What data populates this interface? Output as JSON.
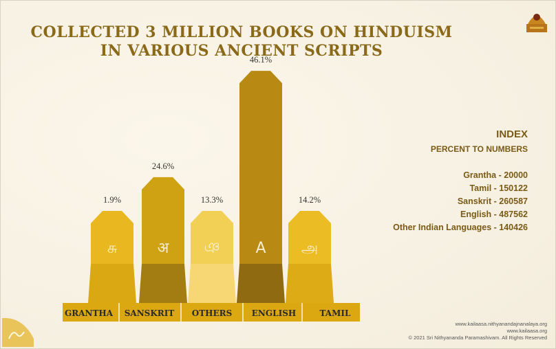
{
  "title_line1": "COLLECTED 3 MILLION BOOKS ON HINDUISM",
  "title_line2": "IN VARIOUS ANCIENT SCRIPTS",
  "index": {
    "heading": "INDEX",
    "subheading": "PERCENT TO NUMBERS",
    "items": [
      "Grantha - 20000",
      "Tamil - 150122",
      "Sanskrit - 260587",
      "English - 487562",
      "Other Indian Languages - 140426"
    ]
  },
  "footer": [
    "www.kailaasa.nithyanandajnanalaya.org",
    "www.kailaasa.org",
    "© 2021 Sri Nithyananda Paramashivam. All Rights Reserved"
  ],
  "chart_data": {
    "type": "bar",
    "categories": [
      "GRANTHA",
      "SANSKRIT",
      "OTHERS",
      "ENGLISH",
      "TAMIL"
    ],
    "values": [
      1.9,
      24.6,
      13.3,
      46.1,
      14.2
    ],
    "value_labels": [
      "1.9%",
      "24.6%",
      "13.3%",
      "46.1%",
      "14.2%"
    ],
    "glyphs": [
      "சு",
      "अ",
      "ঞ",
      "A",
      "அ"
    ],
    "colors": [
      "#e9b820",
      "#cfa214",
      "#f2cf55",
      "#b88a14",
      "#ebbc24"
    ],
    "base_colors": [
      "#d9a812",
      "#a47d12",
      "#f6d774",
      "#8f6a10",
      "#dcab16"
    ],
    "label_bg": "#dca812"
  }
}
